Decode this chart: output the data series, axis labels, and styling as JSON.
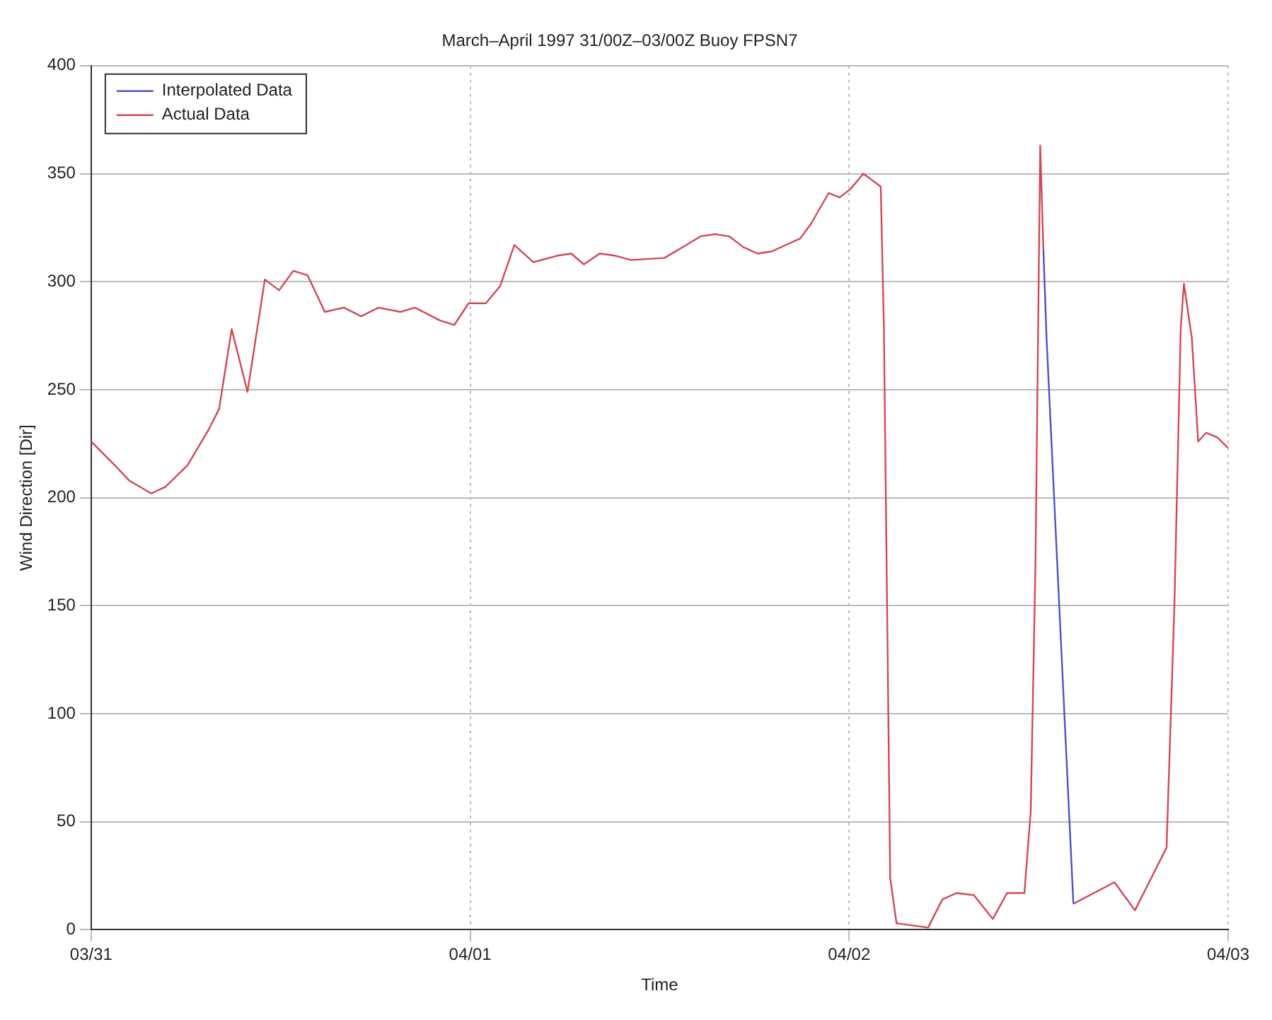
{
  "chart_data": {
    "type": "line",
    "title": "March–April 1997 31/00Z–03/00Z Buoy FPSN7",
    "xlabel": "Time",
    "ylabel": "Wind Direction [Dir]",
    "x": [
      "1997-03-31T00:00",
      "1997-03-31T01:30",
      "1997-03-31T02:24",
      "1997-03-31T03:48",
      "1997-03-31T04:42",
      "1997-03-31T06:06",
      "1997-03-31T07:24",
      "1997-03-31T08:06",
      "1997-03-31T08:54",
      "1997-03-31T09:54",
      "1997-03-31T11:00",
      "1997-03-31T11:54",
      "1997-03-31T12:48",
      "1997-03-31T13:42",
      "1997-03-31T14:48",
      "1997-03-31T16:00",
      "1997-03-31T17:06",
      "1997-03-31T18:12",
      "1997-03-31T19:36",
      "1997-03-31T20:30",
      "1997-03-31T22:06",
      "1997-03-31T23:00",
      "1997-03-31T23:54",
      "1997-04-01T01:00",
      "1997-04-01T01:54",
      "1997-04-01T02:48",
      "1997-04-01T04:00",
      "1997-04-01T05:30",
      "1997-04-01T06:24",
      "1997-04-01T07:12",
      "1997-04-01T08:12",
      "1997-04-01T09:12",
      "1997-04-01T10:12",
      "1997-04-01T12:18",
      "1997-04-01T13:42",
      "1997-04-01T14:36",
      "1997-04-01T15:30",
      "1997-04-01T16:24",
      "1997-04-01T17:18",
      "1997-04-01T18:12",
      "1997-04-01T19:06",
      "1997-04-01T20:00",
      "1997-04-01T20:54",
      "1997-04-01T21:36",
      "1997-04-01T22:42",
      "1997-04-01T23:24",
      "1997-04-02T00:06",
      "1997-04-02T00:54",
      "1997-04-02T02:00",
      "1997-04-02T02:12",
      "1997-04-02T02:36",
      "1997-04-02T03:00",
      "1997-04-02T05:00",
      "1997-04-02T05:54",
      "1997-04-02T06:48",
      "1997-04-02T07:54",
      "1997-04-02T09:06",
      "1997-04-02T10:00",
      "1997-04-02T11:06",
      "1997-04-02T11:30",
      "1997-04-02T11:48",
      "1997-04-02T12:06",
      "1997-04-02T12:18",
      "1997-04-02T12:30",
      "1997-04-02T14:12",
      "1997-04-02T16:48",
      "1997-04-02T18:06",
      "1997-04-02T20:06",
      "1997-04-02T20:36",
      "1997-04-02T21:00",
      "1997-04-02T21:12",
      "1997-04-02T21:42",
      "1997-04-02T22:06",
      "1997-04-02T22:36",
      "1997-04-02T23:18",
      "1997-04-03T00:00"
    ],
    "series": [
      {
        "name": "Interpolated Data",
        "color": "#5050c8",
        "values": [
          null,
          null,
          null,
          null,
          null,
          null,
          null,
          null,
          null,
          null,
          null,
          null,
          null,
          null,
          null,
          null,
          null,
          null,
          null,
          null,
          null,
          null,
          null,
          null,
          null,
          null,
          null,
          null,
          null,
          null,
          null,
          null,
          null,
          null,
          null,
          null,
          null,
          null,
          null,
          null,
          null,
          null,
          null,
          null,
          null,
          null,
          null,
          null,
          null,
          null,
          null,
          null,
          null,
          null,
          null,
          null,
          null,
          null,
          null,
          null,
          null,
          null,
          315,
          274,
          12,
          null,
          null,
          null,
          null,
          null,
          null,
          null,
          null,
          null,
          null,
          null
        ]
      },
      {
        "name": "Actual Data",
        "color": "#d04858",
        "values": [
          226,
          215,
          208,
          202,
          205,
          215,
          231,
          241,
          278,
          249,
          301,
          296,
          305,
          303,
          286,
          288,
          284,
          288,
          286,
          288,
          282,
          280,
          290,
          290,
          298,
          317,
          309,
          312,
          313,
          308,
          313,
          312,
          310,
          311,
          317,
          321,
          322,
          321,
          316,
          313,
          314,
          317,
          320,
          327,
          341,
          339,
          343,
          350,
          344,
          279,
          24,
          3,
          1,
          14,
          17,
          16,
          5,
          17,
          17,
          55,
          170,
          363,
          315,
          null,
          12,
          22,
          9,
          38,
          151,
          279,
          299,
          274,
          226,
          230,
          228,
          223
        ]
      }
    ],
    "xlim": [
      "1997-03-31",
      "1997-04-03"
    ],
    "xticks": [
      {
        "value": "1997-03-31",
        "label": "03/31"
      },
      {
        "value": "1997-04-01",
        "label": "04/01"
      },
      {
        "value": "1997-04-02",
        "label": "04/02"
      },
      {
        "value": "1997-04-03",
        "label": "04/03"
      }
    ],
    "ylim": [
      0,
      400
    ],
    "yticks": [
      0,
      50,
      100,
      150,
      200,
      250,
      300,
      350,
      400
    ],
    "grid": true,
    "legend": "top left",
    "marker": "none",
    "line_style": "solid"
  }
}
